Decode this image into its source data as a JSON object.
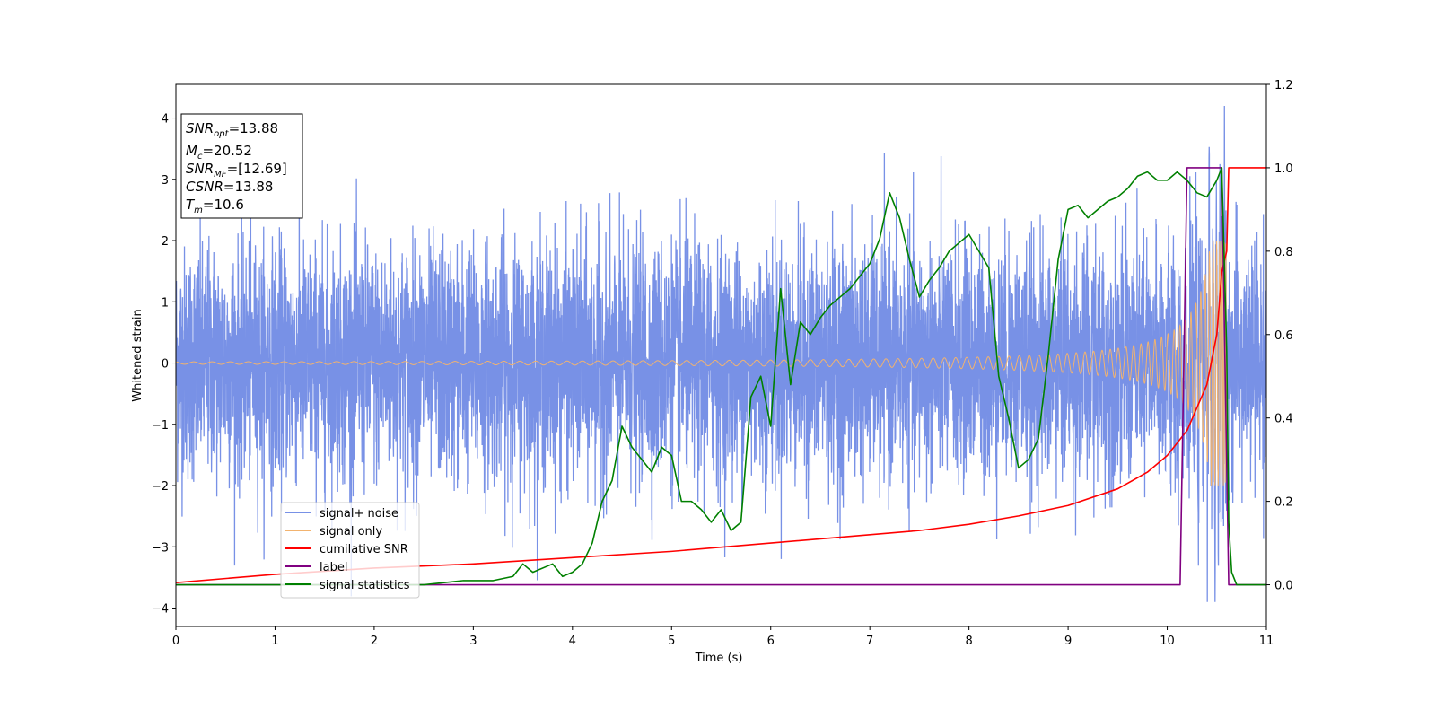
{
  "chart_data": {
    "type": "line",
    "xlabel": "Time (s)",
    "ylabel": "Whitened strain",
    "xlim": [
      0,
      11
    ],
    "ylim_left": [
      -4.3,
      4.55
    ],
    "ylim_right": [
      -0.1,
      1.2
    ],
    "x_ticks": [
      "0",
      "1",
      "2",
      "3",
      "4",
      "5",
      "6",
      "7",
      "8",
      "9",
      "10",
      "11"
    ],
    "y_ticks_left": [
      "4",
      "3",
      "2",
      "1",
      "0",
      "−1",
      "−2",
      "−3",
      "−4"
    ],
    "y_ticks_right": [
      "1.2",
      "1.0",
      "0.8",
      "0.6",
      "0.4",
      "0.2",
      "0.0"
    ],
    "info_box": {
      "snr_opt": {
        "base": "SNR",
        "sub": "opt",
        "value": "=13.88"
      },
      "mc": {
        "base": "M",
        "sub": "c",
        "value": "=20.52"
      },
      "snr_mf": {
        "base": "SNR",
        "sub": "MF",
        "value": "=[12.69]"
      },
      "csnr": {
        "base": "CSNR",
        "sub": "",
        "value": "=13.88"
      },
      "tm": {
        "base": "T",
        "sub": "m",
        "value": "=10.6"
      }
    },
    "legend_placement": "lower-left",
    "series": [
      {
        "name": "signal+ noise",
        "axis": "left",
        "color": "#7891e6",
        "kind": "noise",
        "amplitude_std": 0.95,
        "range_left": [
          -3.9,
          4.2
        ]
      },
      {
        "name": "signal only",
        "axis": "left",
        "color": "#f2b36f",
        "kind": "chirp",
        "start_amplitude": 0.02,
        "peak_amplitude": 2.0,
        "merger_time": 10.6
      },
      {
        "name": "cumilative SNR",
        "axis": "right",
        "color": "#ff0000",
        "x": [
          0,
          1,
          2,
          3,
          4,
          5,
          6,
          7,
          7.5,
          8,
          8.5,
          9,
          9.5,
          9.8,
          10,
          10.2,
          10.4,
          10.5,
          10.55,
          10.6,
          10.62,
          11
        ],
        "y": [
          0.005,
          0.025,
          0.04,
          0.05,
          0.065,
          0.08,
          0.1,
          0.12,
          0.13,
          0.145,
          0.165,
          0.19,
          0.23,
          0.27,
          0.31,
          0.37,
          0.48,
          0.6,
          0.75,
          0.8,
          1.0,
          1.0
        ]
      },
      {
        "name": "label",
        "axis": "right",
        "color": "#800080",
        "x": [
          0,
          10.13,
          10.2,
          10.55,
          10.62,
          11
        ],
        "y": [
          0,
          0,
          1,
          1,
          0,
          0
        ]
      },
      {
        "name": "signal statistics",
        "axis": "right",
        "color": "#008000",
        "x": [
          0,
          2.5,
          2.9,
          3.2,
          3.4,
          3.5,
          3.6,
          3.8,
          3.9,
          4.0,
          4.1,
          4.2,
          4.3,
          4.4,
          4.5,
          4.6,
          4.7,
          4.8,
          4.9,
          5.0,
          5.1,
          5.2,
          5.3,
          5.4,
          5.5,
          5.6,
          5.7,
          5.8,
          5.9,
          6.0,
          6.1,
          6.2,
          6.3,
          6.4,
          6.5,
          6.6,
          6.7,
          6.8,
          6.9,
          7.0,
          7.1,
          7.2,
          7.3,
          7.4,
          7.5,
          7.6,
          7.7,
          7.8,
          7.9,
          8.0,
          8.1,
          8.2,
          8.3,
          8.4,
          8.5,
          8.6,
          8.7,
          8.8,
          8.9,
          9.0,
          9.1,
          9.2,
          9.3,
          9.4,
          9.5,
          9.6,
          9.7,
          9.8,
          9.9,
          10.0,
          10.1,
          10.2,
          10.3,
          10.4,
          10.5,
          10.55,
          10.6,
          10.62,
          10.65,
          10.7,
          11
        ],
        "y": [
          0,
          0,
          0.01,
          0.01,
          0.02,
          0.05,
          0.03,
          0.05,
          0.02,
          0.03,
          0.05,
          0.1,
          0.2,
          0.25,
          0.38,
          0.33,
          0.3,
          0.27,
          0.33,
          0.31,
          0.2,
          0.2,
          0.18,
          0.15,
          0.18,
          0.13,
          0.15,
          0.45,
          0.5,
          0.38,
          0.71,
          0.48,
          0.63,
          0.6,
          0.64,
          0.67,
          0.69,
          0.71,
          0.74,
          0.77,
          0.83,
          0.94,
          0.88,
          0.78,
          0.69,
          0.73,
          0.76,
          0.8,
          0.82,
          0.84,
          0.8,
          0.76,
          0.5,
          0.4,
          0.28,
          0.3,
          0.35,
          0.55,
          0.78,
          0.9,
          0.91,
          0.88,
          0.9,
          0.92,
          0.93,
          0.95,
          0.98,
          0.99,
          0.97,
          0.97,
          0.99,
          0.97,
          0.94,
          0.93,
          0.97,
          1.0,
          0.56,
          0.15,
          0.03,
          0.0,
          0.0
        ]
      }
    ]
  }
}
